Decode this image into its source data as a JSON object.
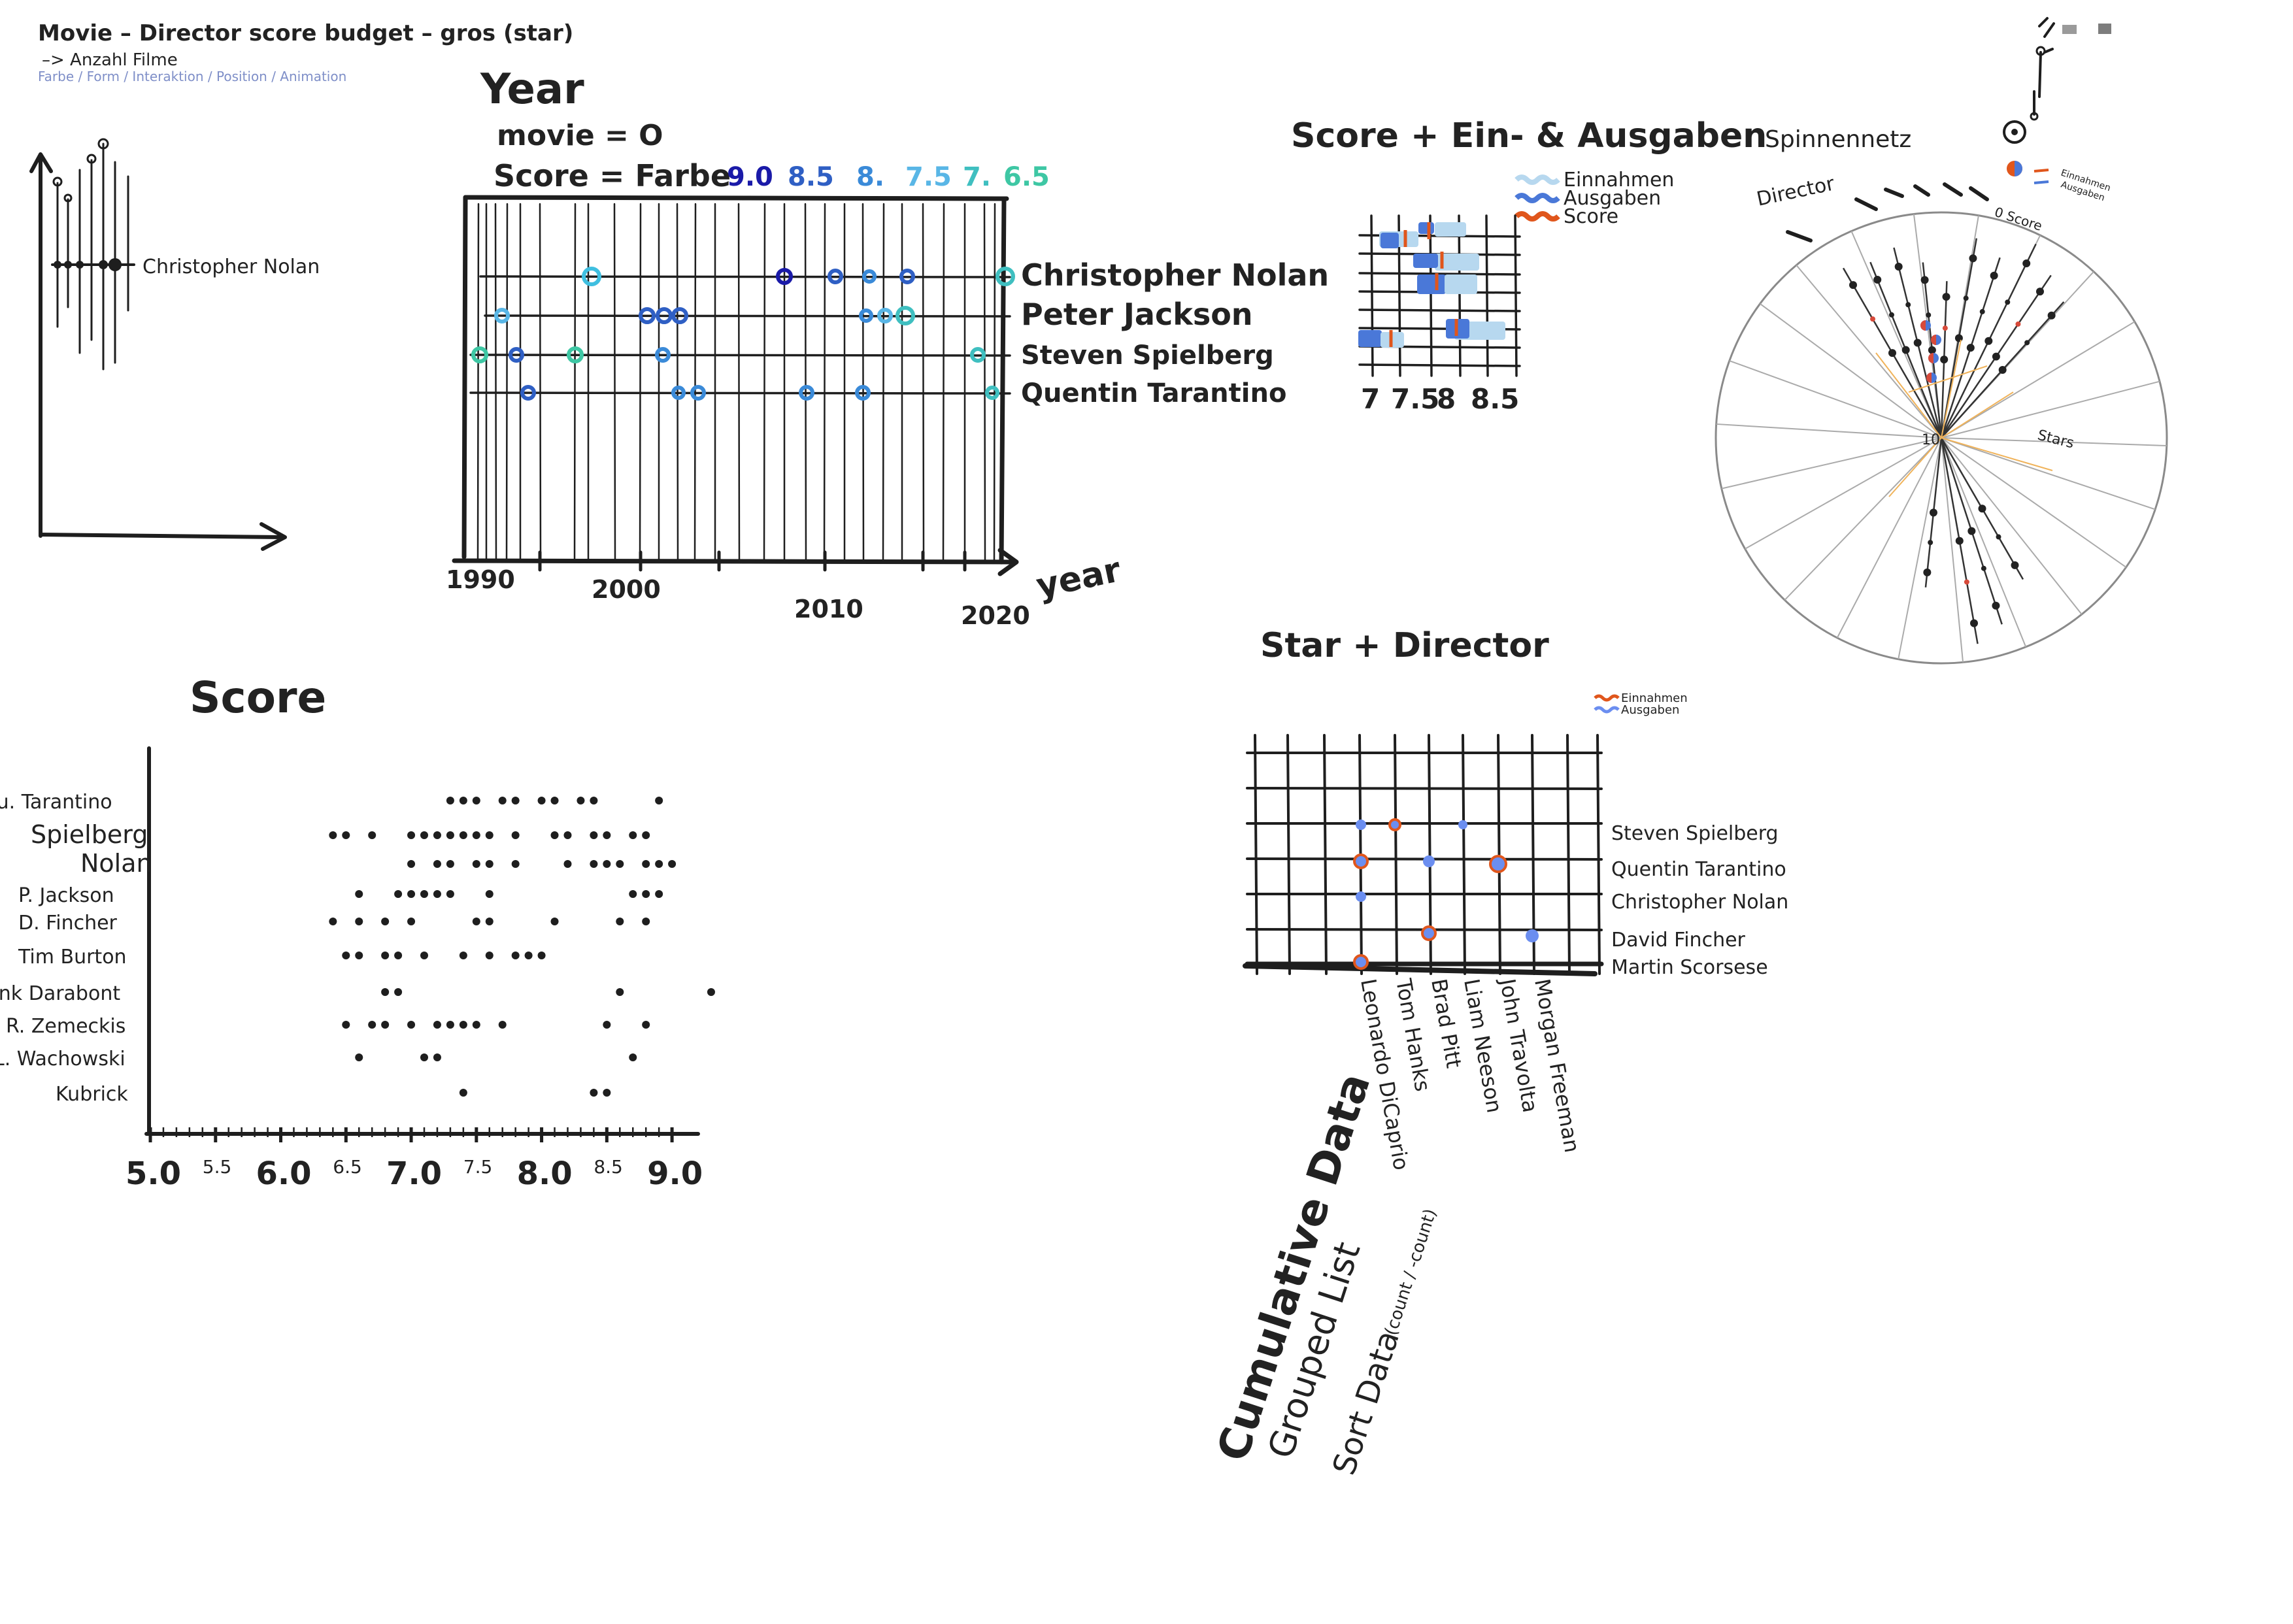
{
  "header": {
    "line1": "Movie – Director      score      budget – gros       (star)",
    "line2": "–> Anzahl Filme",
    "line3": "Farbe / Form / Interaktion / Position / Animation"
  },
  "sketch_axes": {
    "label": "Christopher Nolan"
  },
  "year_chart": {
    "title": "Year",
    "note_movie": "movie = O",
    "note_score": "Score = Farbe",
    "score_legend": [
      {
        "label": "9.0",
        "color": "#1a1aa8"
      },
      {
        "label": "8.5",
        "color": "#2f5fc4"
      },
      {
        "label": "8.",
        "color": "#3a8ad8"
      },
      {
        "label": "7.5",
        "color": "#59b6e6"
      },
      {
        "label": "7.",
        "color": "#3fbfc0"
      },
      {
        "label": "6.5",
        "color": "#3ec7a4"
      }
    ],
    "directors": [
      "Christopher Nolan",
      "Peter Jackson",
      "Steven Spielberg",
      "Quentin Tarantino"
    ],
    "x_ticks": [
      "1990",
      "2000",
      "2010",
      "2020"
    ],
    "x_axis_label": "year"
  },
  "score_chart": {
    "title": "Score",
    "directors": [
      "Qu. Tarantino",
      "Spielberg",
      "Nolan",
      "P. Jackson",
      "D. Fincher",
      "Tim Burton",
      "Frank Darabont",
      "R. Zemeckis",
      "L. Wachowski",
      "Kubrick"
    ],
    "x_ticks_major": [
      "5.0",
      "6.0",
      "7.0",
      "8.0",
      "9.0"
    ],
    "x_ticks_minor": [
      "5.5",
      "6.5",
      "7.5",
      "8.5"
    ]
  },
  "score_budget": {
    "title": "Score + Ein- & Ausgaben",
    "legend": [
      {
        "label": "Einnahmen",
        "color": "#b7d8ef"
      },
      {
        "label": "Ausgaben",
        "color": "#4a78d8"
      },
      {
        "label": "Score",
        "color": "#e0561c"
      }
    ],
    "x_ticks": [
      "7",
      "7.5",
      "8",
      "8.5"
    ]
  },
  "spider": {
    "title": "Spinnennetz",
    "director_label": "Director",
    "score_label": "0 Score",
    "center_label": "10",
    "stars_label": "Stars",
    "legend": [
      {
        "label": "Einnahmen",
        "color": "#e0561c"
      },
      {
        "label": "Ausgaben",
        "color": "#4a78d8"
      }
    ]
  },
  "star_director": {
    "title": "Star + Director",
    "legend": [
      {
        "label": "Einnahmen",
        "color": "#e0561c"
      },
      {
        "label": "Ausgaben",
        "color": "#6b8ef0"
      }
    ],
    "directors": [
      "Steven Spielberg",
      "Quentin Tarantino",
      "Christopher Nolan",
      "David Fincher",
      "Martin Scorsese"
    ],
    "stars": [
      "Leonardo DiCaprio",
      "Tom Hanks",
      "Brad Pitt",
      "Liam Neeson",
      "John Travolta",
      "Morgan Freeman"
    ]
  },
  "notes": {
    "cumulative": "Cumulative Data",
    "grouped": "Grouped List",
    "sort": "Sort Data",
    "sort_hint": "(count / -count)"
  }
}
